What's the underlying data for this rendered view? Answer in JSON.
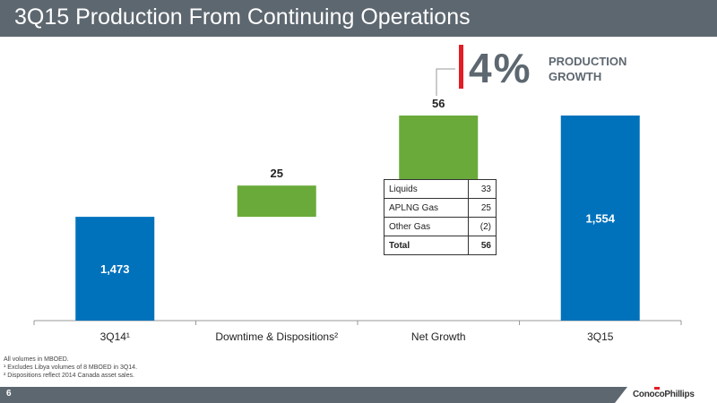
{
  "header": {
    "title": "3Q15 Production From Continuing Operations"
  },
  "growth": {
    "value": "4%",
    "label": "PRODUCTION GROWTH"
  },
  "chart_data": {
    "type": "bar",
    "subtype": "waterfall",
    "categories": [
      "3Q14¹",
      "Downtime & Dispositions²",
      "Net Growth",
      "3Q15"
    ],
    "bars": [
      {
        "category": "3Q14¹",
        "kind": "total",
        "value": 1473,
        "label": "1,473",
        "color": "#0072bc"
      },
      {
        "category": "Downtime & Dispositions²",
        "kind": "delta",
        "value": 25,
        "label": "25",
        "color": "#6aaa3a"
      },
      {
        "category": "Net Growth",
        "kind": "delta",
        "value": 56,
        "label": "56",
        "color": "#6aaa3a"
      },
      {
        "category": "3Q15",
        "kind": "total",
        "value": 1554,
        "label": "1,554",
        "color": "#0072bc"
      }
    ],
    "grid": false,
    "legend": "none"
  },
  "table": {
    "rows": [
      {
        "name": "Liquids",
        "value": "33"
      },
      {
        "name": "APLNG Gas",
        "value": "25"
      },
      {
        "name": "Other Gas",
        "value": "(2)"
      }
    ],
    "total": {
      "name": "Total",
      "value": "56"
    }
  },
  "footnotes": [
    "All volumes in MBOED.",
    "¹ Excludes Libya volumes of 8 MBOED in 3Q14.",
    "² Dispositions reflect 2014 Canada asset sales."
  ],
  "footer": {
    "page": "6",
    "logo": "ConocoPhillips"
  },
  "colors": {
    "header": "#5d6770",
    "total_bar": "#0072bc",
    "delta_bar": "#6aaa3a",
    "accent": "#e31d25"
  }
}
